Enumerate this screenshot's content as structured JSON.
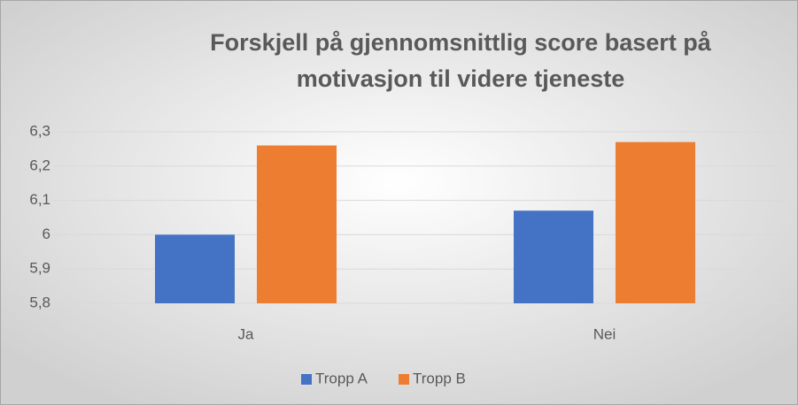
{
  "chart_data": {
    "type": "bar",
    "title": "Forskjell på gjennomsnittlig score basert på motivasjon til videre tjeneste",
    "categories": [
      "Ja",
      "Nei"
    ],
    "series": [
      {
        "name": "Tropp A",
        "color": "#4472c4",
        "values": [
          6.0,
          6.07
        ]
      },
      {
        "name": "Tropp B",
        "color": "#ed7d31",
        "values": [
          6.26,
          6.27
        ]
      }
    ],
    "ylim": [
      5.8,
      6.3
    ],
    "yticks": [
      {
        "value": 5.8,
        "label": "5,8"
      },
      {
        "value": 5.9,
        "label": "5,9"
      },
      6,
      {
        "value": 6.1,
        "label": "6,1"
      },
      {
        "value": 6.2,
        "label": "6,2"
      },
      {
        "value": 6.3,
        "label": "6,3"
      }
    ],
    "grid": true,
    "legend": "bottom"
  }
}
